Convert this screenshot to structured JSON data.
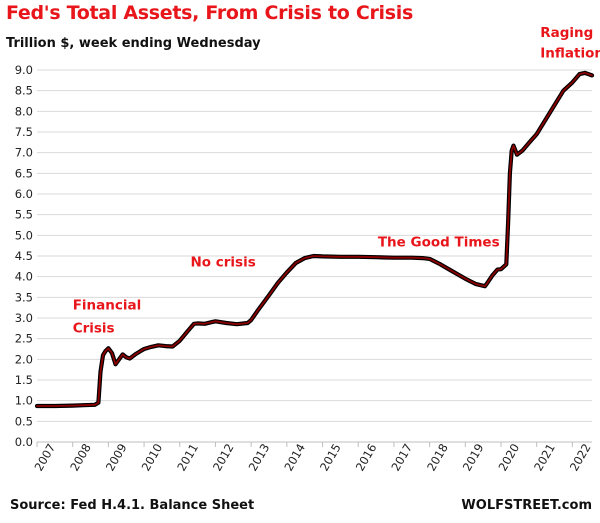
{
  "header": {
    "title": "Fed's Total Assets, From Crisis to Crisis",
    "subtitle": "Trillion $, week ending Wednesday"
  },
  "footer": {
    "source": "Source: Fed H.4.1. Balance Sheet",
    "brand": "WOLFSTREET.com"
  },
  "colors": {
    "title": "#e8161b",
    "annotation": "#e8161b",
    "line": "#8b0000",
    "line_outline": "#000000",
    "grid": "#d9d9d9"
  },
  "chart_data": {
    "type": "line",
    "title": "Fed's Total Assets, From Crisis to Crisis",
    "subtitle": "Trillion $, week ending Wednesday",
    "xlabel": "",
    "ylabel": "",
    "xlim": [
      2007.0,
      2022.55
    ],
    "ylim": [
      0.0,
      9.0
    ],
    "grid": true,
    "legend": "none",
    "x_ticks": [
      "2007",
      "2008",
      "2009",
      "2010",
      "2011",
      "2012",
      "2013",
      "2014",
      "2015",
      "2016",
      "2017",
      "2018",
      "2019",
      "2020",
      "2021",
      "2022"
    ],
    "y_ticks": [
      "0.0",
      "0.5",
      "1.0",
      "1.5",
      "2.0",
      "2.5",
      "3.0",
      "3.5",
      "4.0",
      "4.5",
      "5.0",
      "5.5",
      "6.0",
      "6.5",
      "7.0",
      "7.5",
      "8.0",
      "8.5",
      "9.0"
    ],
    "series": [
      {
        "x": [
          2007.0,
          2007.5,
          2008.0,
          2008.3,
          2008.62,
          2008.72,
          2008.78,
          2008.85,
          2008.92,
          2009.0,
          2009.1,
          2009.2,
          2009.3,
          2009.4,
          2009.5,
          2009.6,
          2009.75,
          2009.9,
          2010.0,
          2010.2,
          2010.4,
          2010.6,
          2010.8,
          2011.0,
          2011.2,
          2011.4,
          2011.5,
          2011.7,
          2011.9,
          2012.0,
          2012.3,
          2012.6,
          2012.9,
          2013.0,
          2013.2,
          2013.5,
          2013.75,
          2014.0,
          2014.25,
          2014.5,
          2014.75,
          2015.0,
          2015.5,
          2016.0,
          2016.5,
          2017.0,
          2017.5,
          2017.8,
          2018.0,
          2018.3,
          2018.6,
          2019.0,
          2019.3,
          2019.55,
          2019.62,
          2019.75,
          2019.9,
          2020.0,
          2020.15,
          2020.2,
          2020.25,
          2020.3,
          2020.35,
          2020.45,
          2020.6,
          2020.8,
          2021.0,
          2021.25,
          2021.5,
          2021.75,
          2022.0,
          2022.2,
          2022.35,
          2022.55
        ],
        "y": [
          0.87,
          0.87,
          0.88,
          0.89,
          0.9,
          0.95,
          1.7,
          2.1,
          2.2,
          2.27,
          2.15,
          1.88,
          2.0,
          2.12,
          2.05,
          2.02,
          2.12,
          2.2,
          2.25,
          2.3,
          2.34,
          2.32,
          2.31,
          2.45,
          2.66,
          2.86,
          2.87,
          2.86,
          2.9,
          2.92,
          2.88,
          2.85,
          2.88,
          2.95,
          3.2,
          3.55,
          3.85,
          4.1,
          4.33,
          4.45,
          4.5,
          4.49,
          4.48,
          4.48,
          4.47,
          4.46,
          4.46,
          4.45,
          4.43,
          4.3,
          4.15,
          3.95,
          3.82,
          3.77,
          3.85,
          4.02,
          4.17,
          4.18,
          4.3,
          5.3,
          6.5,
          7.05,
          7.17,
          6.95,
          7.05,
          7.25,
          7.45,
          7.8,
          8.15,
          8.5,
          8.7,
          8.9,
          8.93,
          8.87
        ]
      }
    ],
    "annotations": [
      {
        "text": "Financial",
        "x": 2008.0,
        "y": 3.2
      },
      {
        "text": "Crisis",
        "x": 2008.0,
        "y": 2.65
      },
      {
        "text": "No crisis",
        "x": 2011.3,
        "y": 4.25
      },
      {
        "text": "The Good Times",
        "x": 2016.55,
        "y": 4.73
      },
      {
        "text": "Raging",
        "x": 2021.1,
        "y": 9.8
      },
      {
        "text": "Inflation",
        "x": 2021.1,
        "y": 9.3
      }
    ]
  }
}
